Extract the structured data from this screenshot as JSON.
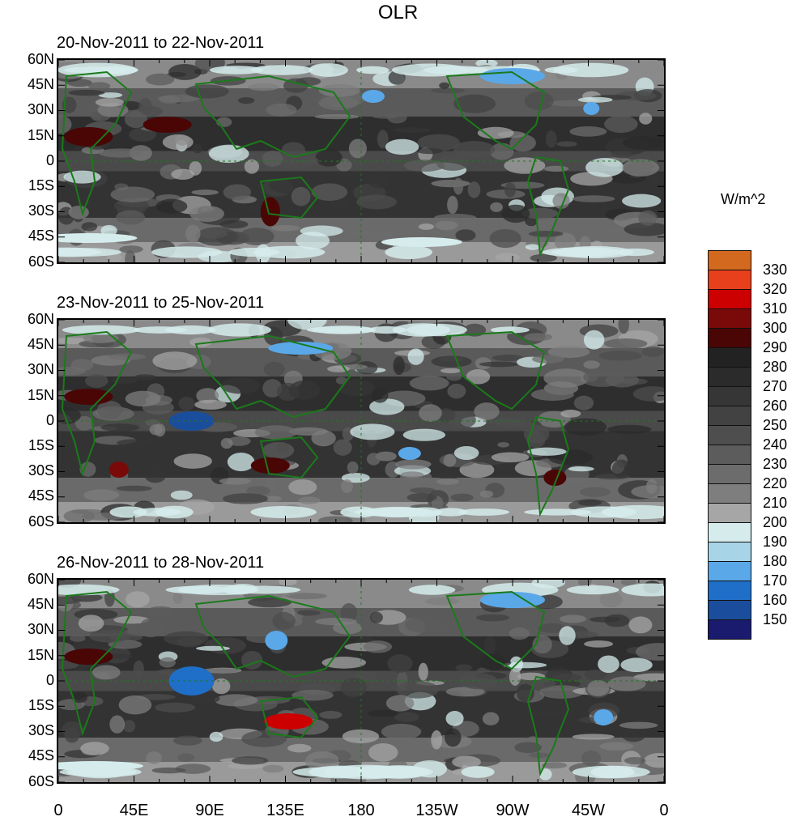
{
  "title": "OLR",
  "units": "W/m^2",
  "panels": [
    {
      "label": "20-Nov-2011 to 22-Nov-2011"
    },
    {
      "label": "23-Nov-2011 to 25-Nov-2011"
    },
    {
      "label": "26-Nov-2011 to 28-Nov-2011"
    }
  ],
  "lat_labels": [
    "60N",
    "45N",
    "30N",
    "15N",
    "0",
    "15S",
    "30S",
    "45S",
    "60S"
  ],
  "lon_labels": [
    "0",
    "45E",
    "90E",
    "135E",
    "180",
    "135W",
    "90W",
    "45W",
    "0"
  ],
  "colorbar": {
    "levels": [
      "330",
      "320",
      "310",
      "300",
      "290",
      "280",
      "270",
      "260",
      "250",
      "240",
      "230",
      "220",
      "210",
      "200",
      "190",
      "180",
      "170",
      "160",
      "150"
    ],
    "colors": [
      "#d2691e",
      "#e8401c",
      "#cc0000",
      "#7a0a0a",
      "#4a0505",
      "#222222",
      "#2b2b2b",
      "#363636",
      "#424242",
      "#4e4e4e",
      "#5c5c5c",
      "#6c6c6c",
      "#7e7e7e",
      "#a6a6a6",
      "#d6ecec",
      "#a8d4e8",
      "#5aa8e8",
      "#1f6fc8",
      "#1a4e9c",
      "#1a1a6e"
    ]
  }
}
